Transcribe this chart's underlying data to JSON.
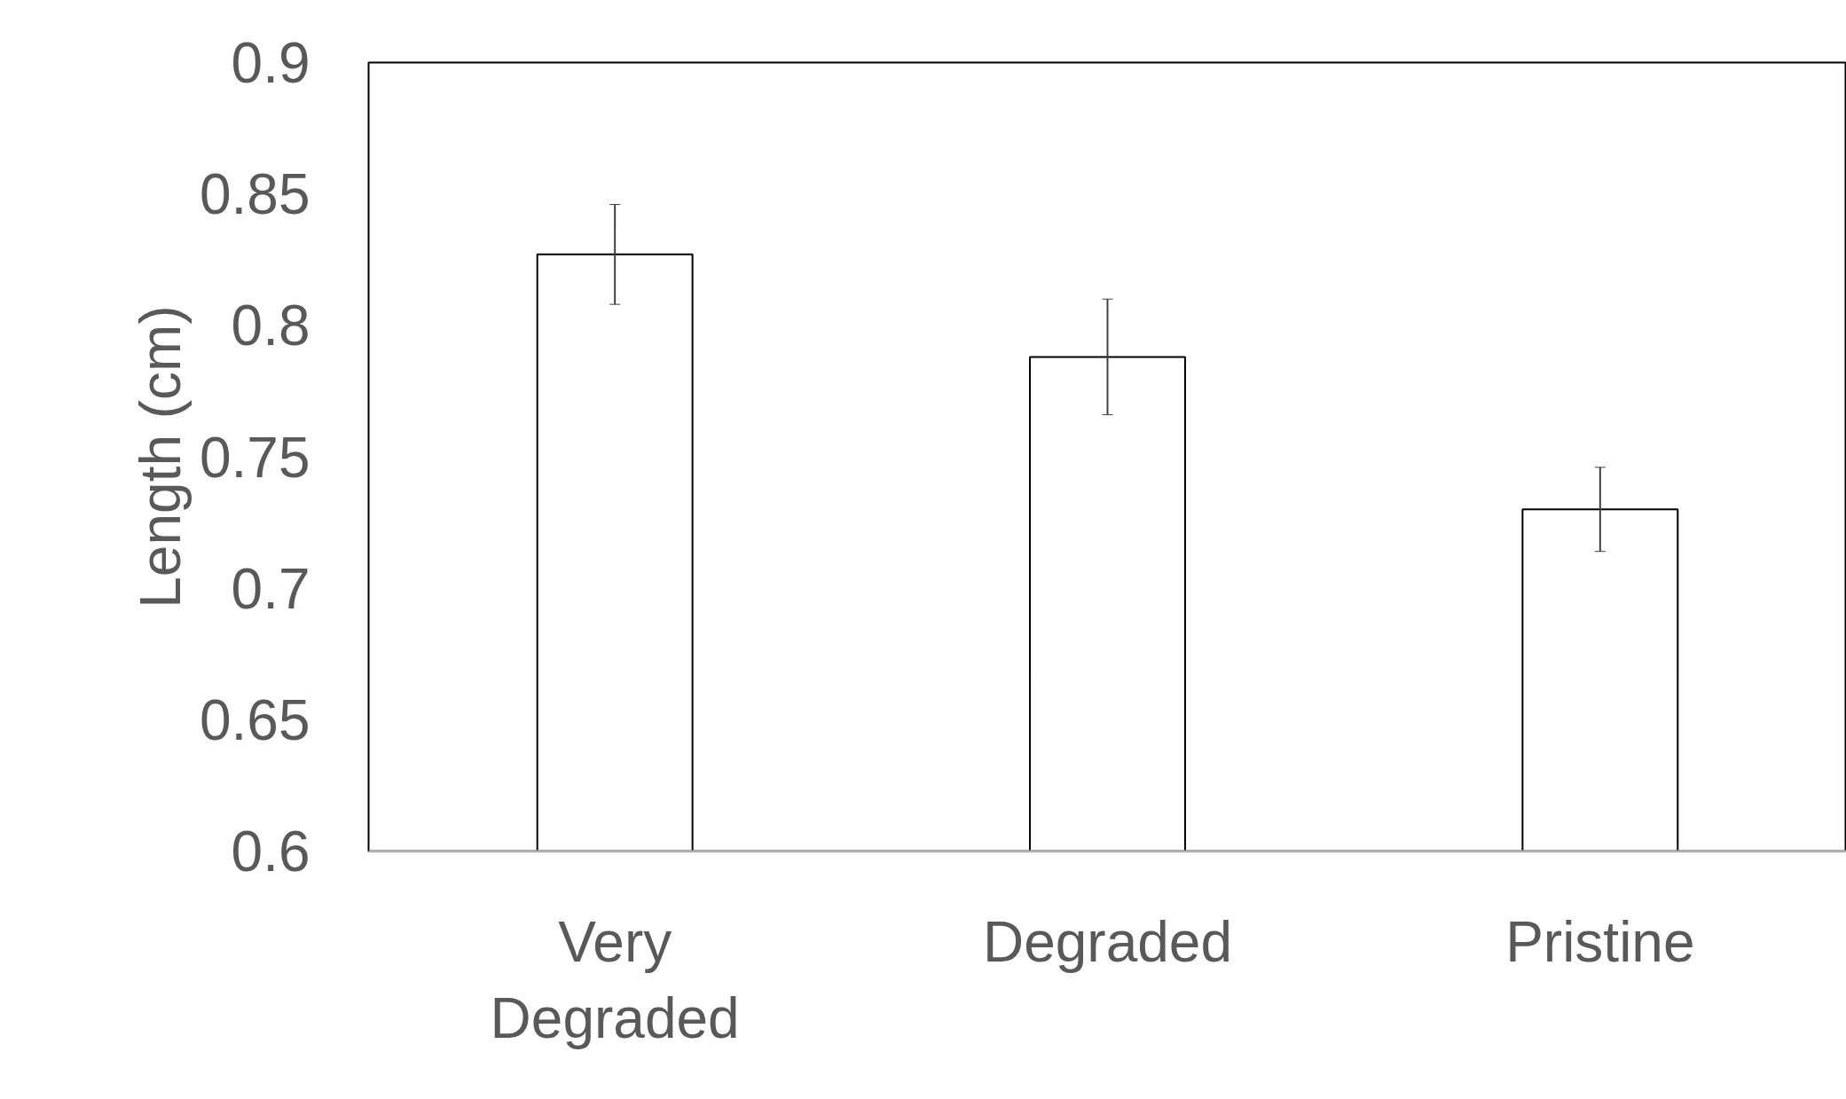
{
  "chart_data": {
    "type": "bar",
    "ylabel": "Length (cm)",
    "categories": [
      "Very Degraded",
      "Degraded",
      "Pristine"
    ],
    "values": [
      0.827,
      0.788,
      0.73
    ],
    "errors": [
      0.019,
      0.022,
      0.016
    ],
    "colors": [
      "#ffffff",
      "#ffffff",
      "#ffffff"
    ],
    "ylim": [
      0.6,
      0.9
    ],
    "yticks": [
      0.6,
      0.65,
      0.7,
      0.75,
      0.8,
      0.85,
      0.9
    ],
    "grid": false
  }
}
